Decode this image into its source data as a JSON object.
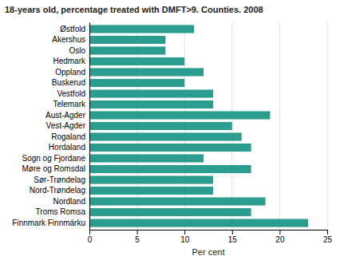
{
  "chart_data": {
    "type": "bar",
    "orientation": "horizontal",
    "title": "18-years old, percentage treated with DMFT>9. Counties. 2008",
    "categories": [
      "Østfold",
      "Akershus",
      "Oslo",
      "Hedmark",
      "Oppland",
      "Buskerud",
      "Vestfold",
      "Telemark",
      "Aust-Agder",
      "Vest-Agder",
      "Rogaland",
      "Hordaland",
      "Sogn og Fjordane",
      "Møre og Romsdal",
      "Sør-Trøndelag",
      "Nord-Trøndelag",
      "Nordland",
      "Troms Romsa",
      "Finnmark Finnmárku"
    ],
    "values": [
      11,
      8,
      8,
      10,
      12,
      10,
      13,
      13,
      19,
      15,
      16,
      17,
      12,
      17,
      13,
      13,
      18.5,
      17,
      23
    ],
    "color": "#2a9d8f",
    "xlabel": "Per cent",
    "xlim": [
      0,
      25
    ],
    "xticks": [
      0,
      5,
      10,
      15,
      20,
      25
    ],
    "grid": true
  }
}
